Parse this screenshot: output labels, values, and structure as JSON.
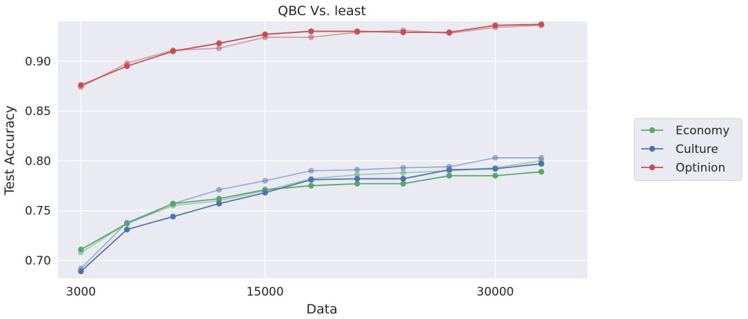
{
  "chart_data": {
    "type": "line",
    "title": "QBC Vs. least",
    "xlabel": "Data",
    "ylabel": "Test Accuracy",
    "xlim": [
      1500,
      36000
    ],
    "ylim": [
      0.682,
      0.94
    ],
    "xticks": [
      3000,
      15000,
      30000
    ],
    "xtick_labels": [
      "3000",
      "15000",
      "30000"
    ],
    "yticks": [
      0.7,
      0.75,
      0.8,
      0.85,
      0.9
    ],
    "ytick_labels": [
      "0.70",
      "0.75",
      "0.80",
      "0.85",
      "0.90"
    ],
    "grid": true,
    "background": "#eaeaf2",
    "legend_position": "outside-right",
    "x": [
      3000,
      6000,
      9000,
      12000,
      15000,
      18000,
      21000,
      24000,
      27000,
      30000,
      33000
    ],
    "series": [
      {
        "name": "",
        "color": "#55a868",
        "faded": true,
        "values": [
          0.708,
          0.737,
          0.755,
          0.76,
          0.77,
          0.782,
          0.786,
          0.788,
          0.79,
          0.793,
          0.8
        ]
      },
      {
        "name": "",
        "color": "#4c72b0",
        "faded": true,
        "values": [
          0.692,
          0.738,
          0.757,
          0.771,
          0.78,
          0.79,
          0.791,
          0.793,
          0.794,
          0.803,
          0.803
        ]
      },
      {
        "name": "",
        "color": "#c44e52",
        "faded": true,
        "values": [
          0.874,
          0.898,
          0.911,
          0.913,
          0.924,
          0.924,
          0.929,
          0.931,
          0.928,
          0.934,
          0.936
        ]
      },
      {
        "name": "Economy",
        "color": "#55a868",
        "faded": false,
        "values": [
          0.711,
          0.737,
          0.757,
          0.762,
          0.771,
          0.775,
          0.777,
          0.777,
          0.785,
          0.785,
          0.789
        ]
      },
      {
        "name": "Culture",
        "color": "#4c72b0",
        "faded": false,
        "values": [
          0.689,
          0.731,
          0.744,
          0.757,
          0.768,
          0.781,
          0.782,
          0.782,
          0.791,
          0.792,
          0.797
        ]
      },
      {
        "name": "Optinion",
        "color": "#c44e52",
        "faded": false,
        "values": [
          0.876,
          0.895,
          0.91,
          0.918,
          0.927,
          0.93,
          0.93,
          0.929,
          0.929,
          0.936,
          0.937
        ]
      }
    ],
    "legend": [
      {
        "label": "Economy",
        "color": "#55a868"
      },
      {
        "label": "Culture",
        "color": "#4c72b0"
      },
      {
        "label": "Optinion",
        "color": "#c44e52"
      }
    ]
  }
}
